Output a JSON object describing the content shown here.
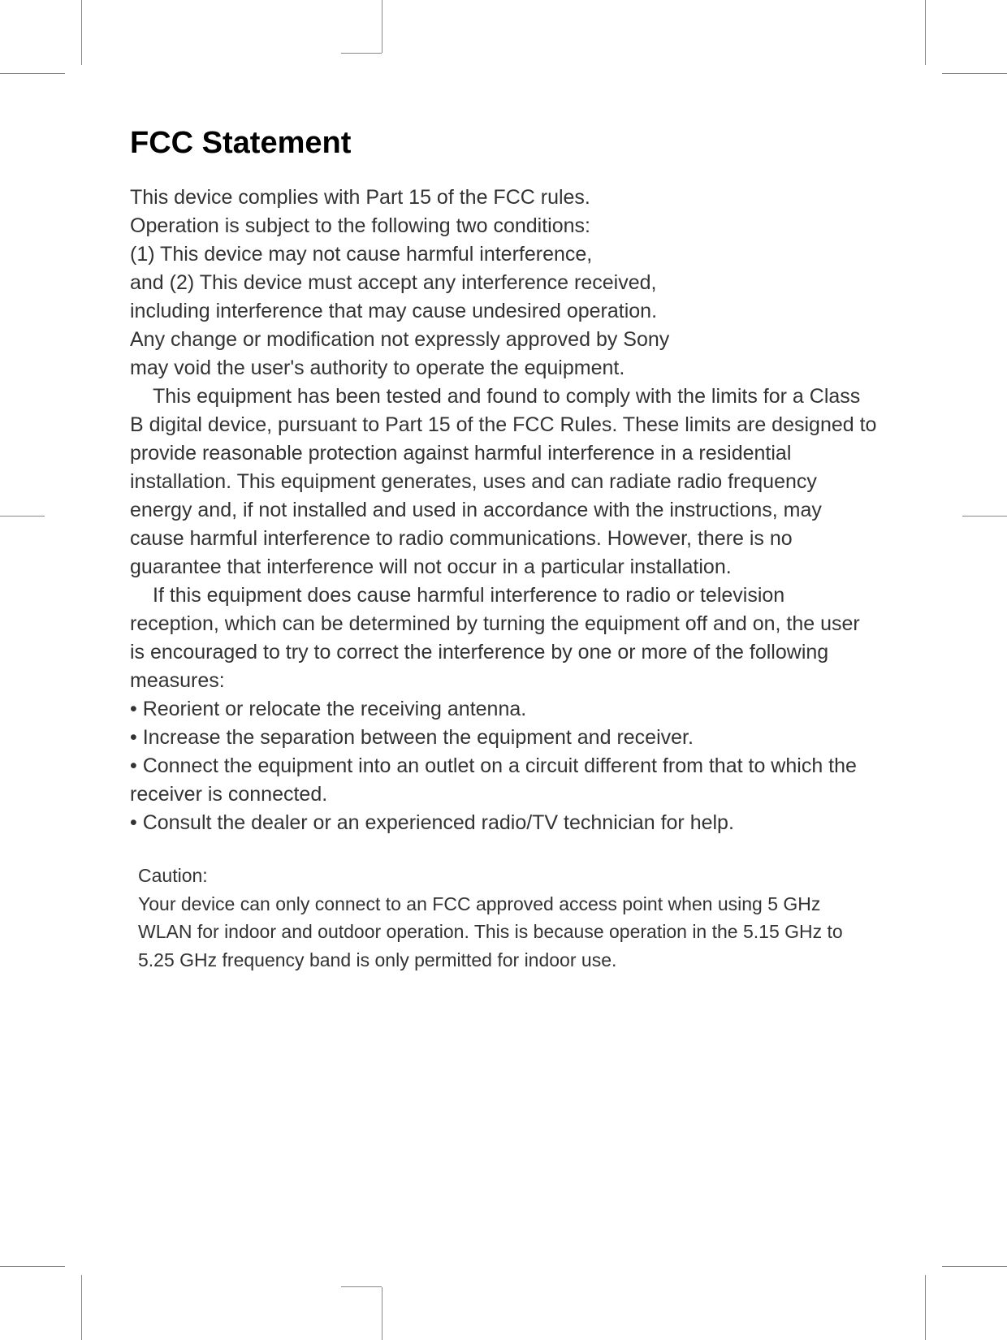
{
  "heading": "FCC Statement",
  "para1_l1": "This device complies with Part 15 of the FCC rules.",
  "para1_l2": "Operation is subject to the following two conditions:",
  "para1_l3": "(1) This device may not cause harmful interference,",
  "para1_l4": "and (2) This device must accept any interference received,",
  "para1_l5": "including interference that may cause undesired operation.",
  "para1_l6": "Any change or modification not expressly approved by Sony",
  "para1_l7": "may void the user's authority to operate the equipment.",
  "para2": "This equipment has been tested and found to comply with the limits for a Class B digital device, pursuant to Part 15 of the FCC Rules. These limits are designed to provide reasonable protection against harmful interference in a residential installation. This equipment generates, uses and can radiate radio frequency energy and, if not installed and used in accordance with the instructions, may cause harmful interference to radio communications. However, there is no guarantee that interference will not occur in a particular installation.",
  "para3": "If this equipment does cause harmful interference to radio or television reception, which can be determined by turning the equipment off and on, the user is encouraged to try to correct the interference by one or more of the following measures:",
  "bullet1": "•  Reorient or relocate the receiving antenna.",
  "bullet2": "•  Increase the separation between the equipment and receiver.",
  "bullet3": "•  Connect the equipment into an outlet on a circuit different from that to which the receiver is connected.",
  "bullet4": "•  Consult the dealer or an experienced radio/TV technician for help.",
  "caution_label": "Caution:",
  "caution_text": "Your device can only connect to an FCC approved access point when using 5 GHz WLAN for indoor and outdoor operation. This is because operation in the 5.15 GHz to 5.25 GHz frequency band is only permitted for indoor use."
}
